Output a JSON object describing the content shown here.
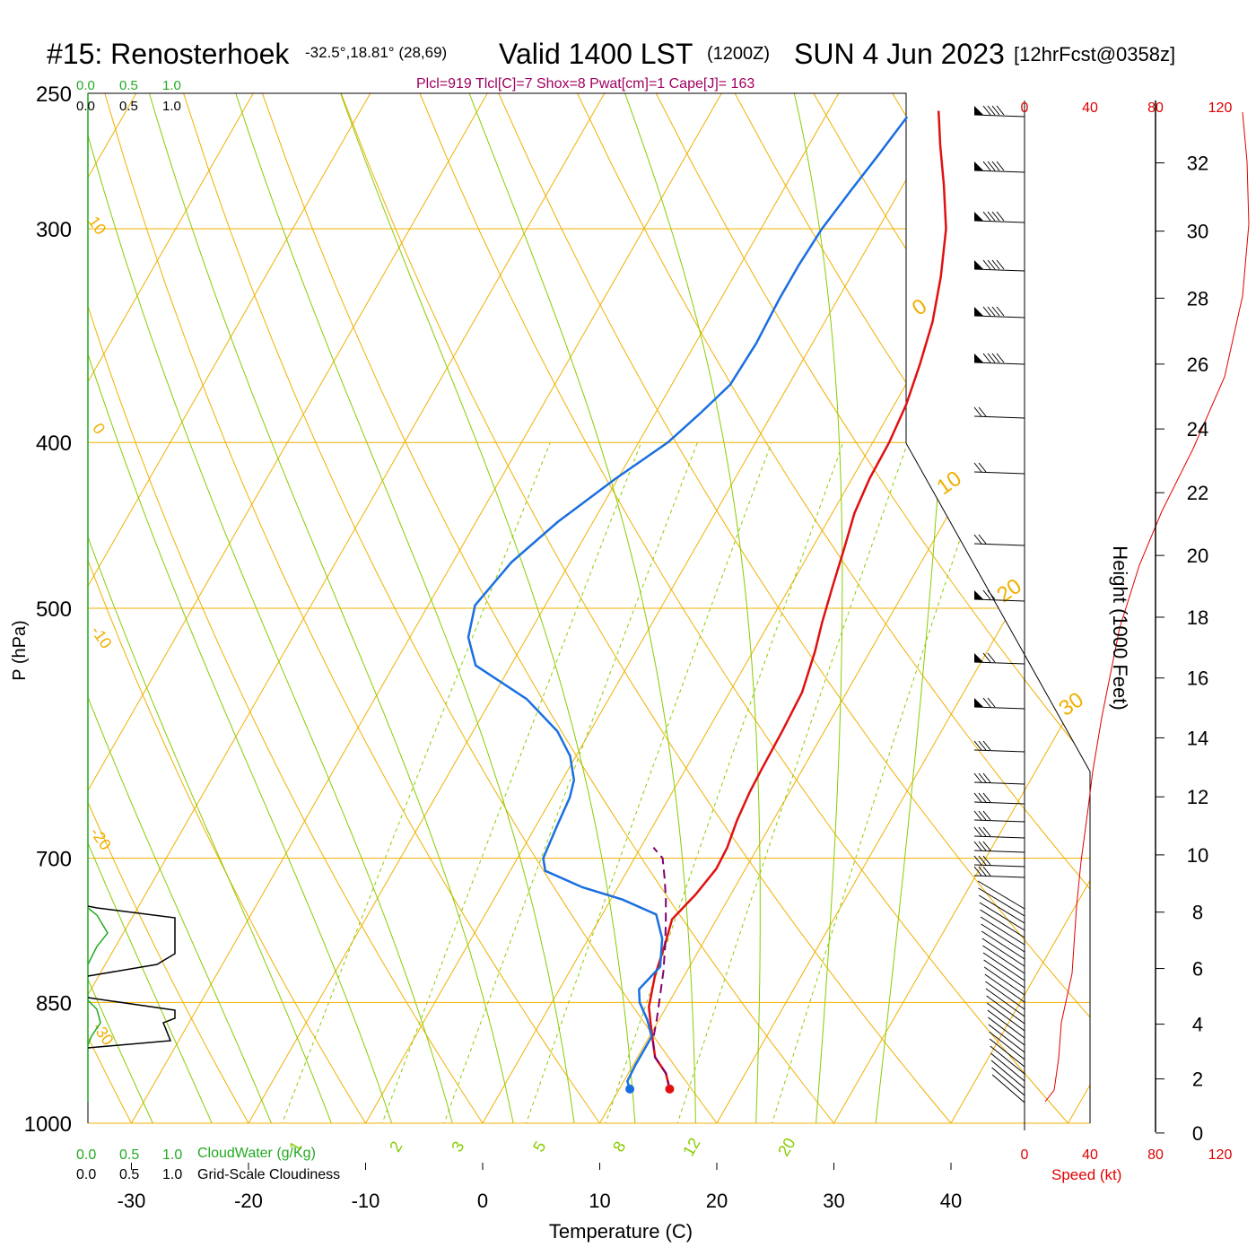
{
  "header": {
    "station": "#15: Renosterhoek",
    "coords": "-32.5°,18.81° (28,69)",
    "valid": "Valid 1400 LST",
    "utc": "(1200Z)",
    "date": "SUN 4 Jun 2023",
    "forecast": "[12hrFcst@0358z]",
    "indices": "Plcl=919 Tlcl[C]=7 Shox=8 Pwat[cm]=1 Cape[J]= 163"
  },
  "chart_data": {
    "type": "line",
    "title": "#15: Renosterhoek",
    "xlabel": "Temperature (C)",
    "ylabel": "P (hPa)",
    "right_label": "Height (1000 Feet)",
    "xlim": [
      -35,
      45
    ],
    "pressure_range": [
      1050,
      250
    ],
    "x_ticks": [
      -30,
      -20,
      -10,
      0,
      10,
      20,
      30,
      40
    ],
    "pressure_ticks": [
      250,
      300,
      400,
      500,
      700,
      850,
      1000
    ],
    "height_ticks": [
      0,
      2,
      4,
      6,
      8,
      10,
      12,
      14,
      16,
      18,
      20,
      22,
      24,
      26,
      28,
      30,
      32
    ],
    "isotherm_labels": [
      "10",
      "0",
      "-10",
      "-20",
      "-30",
      "0",
      "10",
      "20",
      "30"
    ],
    "mixing_ratio_labels": [
      "1",
      "2",
      "3",
      "5",
      "8",
      "12",
      "20"
    ],
    "series": [
      {
        "name": "Temperature",
        "color": "#e01010",
        "points": [
          [
            14.3,
            955
          ],
          [
            13.2,
            935
          ],
          [
            11.5,
            915
          ],
          [
            10.5,
            895
          ],
          [
            9.5,
            875
          ],
          [
            8.5,
            855
          ],
          [
            7.5,
            820
          ],
          [
            6.8,
            785
          ],
          [
            6.2,
            760
          ],
          [
            7.0,
            735
          ],
          [
            7.5,
            710
          ],
          [
            7.4,
            690
          ],
          [
            6.9,
            665
          ],
          [
            6.6,
            640
          ],
          [
            6.5,
            620
          ],
          [
            6.4,
            590
          ],
          [
            6.2,
            560
          ],
          [
            5.3,
            530
          ],
          [
            4.5,
            510
          ],
          [
            3.6,
            485
          ],
          [
            2.7,
            460
          ],
          [
            1.9,
            440
          ],
          [
            1.5,
            420
          ],
          [
            1.4,
            400
          ],
          [
            1.0,
            380
          ],
          [
            0.2,
            360
          ],
          [
            -0.8,
            340
          ],
          [
            -2.3,
            320
          ],
          [
            -4.2,
            300
          ],
          [
            -6.5,
            283
          ],
          [
            -8.8,
            268
          ],
          [
            -10.6,
            256
          ]
        ]
      },
      {
        "name": "Dewpoint",
        "color": "#1a6fe0",
        "points": [
          [
            10.9,
            955
          ],
          [
            10.3,
            945
          ],
          [
            10.2,
            925
          ],
          [
            10.2,
            905
          ],
          [
            10.2,
            890
          ],
          [
            9.0,
            870
          ],
          [
            7.5,
            850
          ],
          [
            6.8,
            835
          ],
          [
            7.5,
            810
          ],
          [
            6.3,
            780
          ],
          [
            4.6,
            755
          ],
          [
            1.0,
            740
          ],
          [
            -3.0,
            728
          ],
          [
            -7.0,
            712
          ],
          [
            -7.8,
            700
          ],
          [
            -8.2,
            670
          ],
          [
            -8.5,
            645
          ],
          [
            -9.0,
            630
          ],
          [
            -10.5,
            610
          ],
          [
            -12.8,
            590
          ],
          [
            -17.0,
            565
          ],
          [
            -23.0,
            540
          ],
          [
            -25.0,
            520
          ],
          [
            -26.0,
            498
          ],
          [
            -25.0,
            470
          ],
          [
            -23.0,
            445
          ],
          [
            -20.2,
            420
          ],
          [
            -17.5,
            400
          ],
          [
            -16.2,
            385
          ],
          [
            -15.0,
            370
          ],
          [
            -14.8,
            350
          ],
          [
            -15.0,
            330
          ],
          [
            -15.0,
            315
          ],
          [
            -14.8,
            300
          ],
          [
            -14.2,
            285
          ],
          [
            -13.6,
            272
          ],
          [
            -13.0,
            258
          ]
        ]
      },
      {
        "name": "Parcel",
        "color": "#800070",
        "points": [
          [
            14.3,
            955
          ],
          [
            13.2,
            935
          ],
          [
            11.5,
            915
          ],
          [
            10.5,
            895
          ],
          [
            9.8,
            870
          ],
          [
            9.0,
            845
          ],
          [
            8.0,
            815
          ],
          [
            7.0,
            790
          ],
          [
            5.9,
            765
          ],
          [
            4.7,
            740
          ],
          [
            3.6,
            720
          ],
          [
            2.4,
            700
          ],
          [
            1.1,
            690
          ]
        ]
      }
    ],
    "cloud_scale_labels": [
      "0.0",
      "0.5",
      "1.0"
    ],
    "cloudwater_label": "CloudWater (g/Kg)",
    "cloudiness_label": "Grid-Scale Cloudiness",
    "wind_speed_label": "Speed (kt)",
    "wind_speed_ticks": [
      "0",
      "40",
      "80",
      "120"
    ]
  },
  "colors": {
    "temperature": "#e01010",
    "dewpoint": "#1a6fe0",
    "parcel": "#800070",
    "isotherm": "#f0b000",
    "moist_adiabat": "#88cc00",
    "mixing_ratio": "#88cc00",
    "cloudwater": "#22aa22",
    "indices": "#a00060",
    "wind_speed": "#e00000"
  }
}
